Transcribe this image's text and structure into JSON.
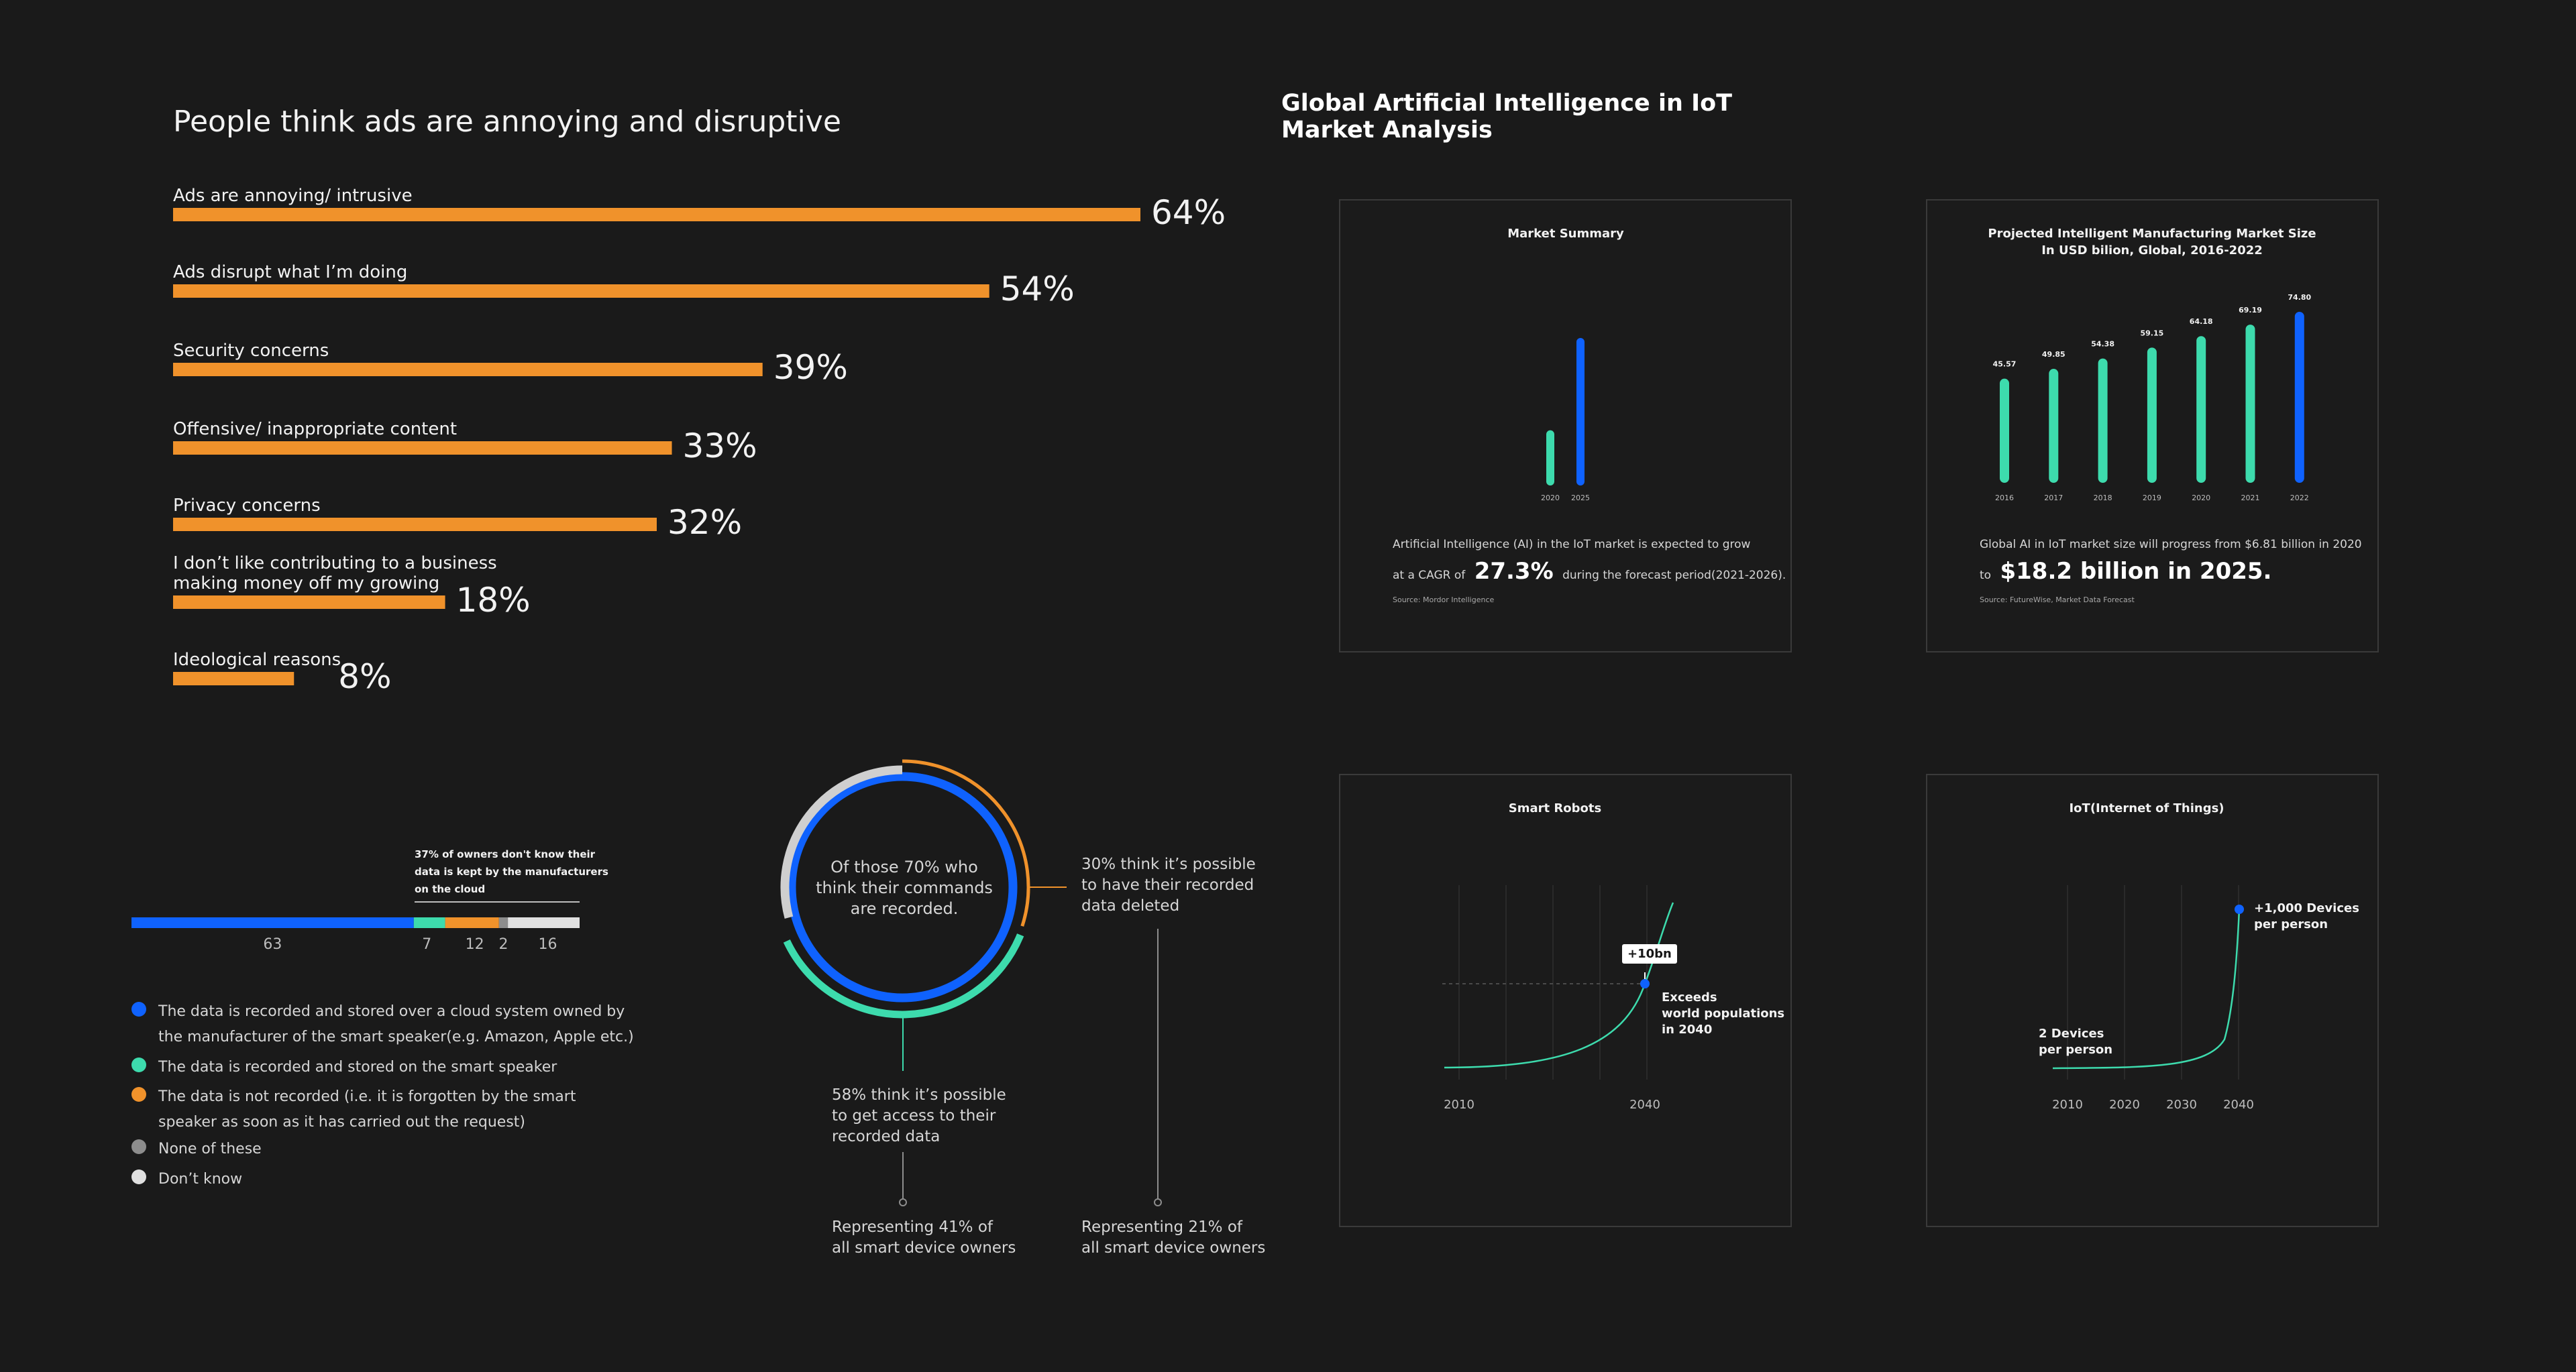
{
  "colors": {
    "background": "#1a1a1a",
    "orange": "#f0922b",
    "blue": "#0f62fe",
    "green": "#3ddbad",
    "light_gray": "#e0e0e0",
    "gray": "#8d8d8d",
    "card_border": "#3a3a3a"
  },
  "ads": {
    "title": "People think ads are annoying and disruptive"
  },
  "iot": {
    "title_line1": "Global Artificial Intelligence in IoT",
    "title_line2": "Market Analysis"
  },
  "market_summary": {
    "desc_line1": "Artificial Intelligence (AI) in the IoT market is expected to grow",
    "desc_prefix": "at a CAGR of",
    "highlight": "27.3%",
    "desc_suffix": "during the forecast period(2021-2026).",
    "source": "Source: Mordor Intelligence"
  },
  "projected": {
    "desc_line1": "Global AI in IoT market size will progress from $6.81 billion in 2020",
    "prefix": "to",
    "highlight": "$18.2 billion in 2025.",
    "source": "Source: FutureWise, Market Data Forecast"
  },
  "smart_robots": {
    "badge": "+10bn",
    "note_line1": "Exceeds",
    "note_line2": "world populations",
    "note_line3": "in 2040"
  },
  "iot_devices": {
    "label_high_line1": "+1,000 Devices",
    "label_high_line2": "per person",
    "label_low_line1": "2 Devices",
    "label_low_line2": "per person"
  },
  "storage": {
    "note_line1": "37% of owners don't know their",
    "note_line2": "data is kept by the manufacturers",
    "note_line3": "on the cloud",
    "legend": [
      {
        "color": "#0f62fe",
        "line1": "The data is recorded and stored over a cloud system owned by",
        "line2": "the manufacturer of the smart speaker(e.g. Amazon, Apple etc.)"
      },
      {
        "color": "#3ddbad",
        "line1": "The data is recorded and stored on the smart speaker",
        "line2": ""
      },
      {
        "color": "#f0922b",
        "line1": "The data is not recorded (i.e. it is forgotten by the smart",
        "line2": "speaker as soon as it has carried out the request)"
      },
      {
        "color": "#8d8d8d",
        "line1": "None of these",
        "line2": ""
      },
      {
        "color": "#e0e0e0",
        "line1": "Don’t know",
        "line2": ""
      }
    ]
  },
  "recorded": {
    "center_line1": "Of those 70% who",
    "center_line2": "think their commands",
    "center_line3": "are recorded.",
    "right_line1": "30% think it’s possible",
    "right_line2": "to have their recorded",
    "right_line3": "data deleted",
    "bottom_line1": "58% think it’s possible",
    "bottom_line2": "to get access to their",
    "bottom_line3": "recorded data",
    "rep_left_line1": "Representing 41% of",
    "rep_left_line2": "all smart device owners",
    "rep_right_line1": "Representing 21% of",
    "rep_right_line2": "all smart device owners"
  },
  "chart_data": [
    {
      "type": "bar",
      "orientation": "horizontal",
      "title": "People think ads are annoying and disruptive",
      "categories": [
        [
          "Ads are annoying/ intrusive"
        ],
        [
          "Ads disrupt what I’m doing"
        ],
        [
          "Security concerns"
        ],
        [
          "Offensive/ inappropriate content"
        ],
        [
          "Privacy concerns"
        ],
        [
          "I don’t like contributing to a business",
          "making money off my growing"
        ],
        [
          "Ideological reasons"
        ]
      ],
      "values": [
        64,
        54,
        39,
        33,
        32,
        18,
        8
      ],
      "value_labels": [
        "64%",
        "54%",
        "39%",
        "33%",
        "32%",
        "18%",
        "8%"
      ],
      "unit": "%"
    },
    {
      "type": "bar",
      "title": "Market Summary",
      "categories": [
        "2020",
        "2025"
      ],
      "values": [
        6.81,
        18.2
      ]
    },
    {
      "type": "bar",
      "title": "Projected Intelligent Manufacturing Market Size",
      "subtitle": "In USD bilion, Global, 2016-2022",
      "categories": [
        "2016",
        "2017",
        "2018",
        "2019",
        "2020",
        "2021",
        "2022"
      ],
      "values": [
        45.57,
        49.85,
        54.38,
        59.15,
        64.18,
        69.19,
        74.8
      ],
      "value_labels": [
        "45.57",
        "49.85",
        "54.38",
        "59.15",
        "64.18",
        "69.19",
        "74.80"
      ]
    },
    {
      "type": "line",
      "title": "Smart Robots",
      "x_ticks": [
        "2010",
        "2040"
      ],
      "highlight": {
        "x": 2040,
        "label": "+10bn"
      }
    },
    {
      "type": "line",
      "title": "IoT(Internet of Things)",
      "x_ticks": [
        "2010",
        "2020",
        "2030",
        "2040"
      ],
      "highlight": {
        "x": 2040,
        "label": "+1,000 Devices per person"
      }
    },
    {
      "type": "bar",
      "orientation": "stacked-horizontal",
      "segments": [
        {
          "value": 63,
          "label": "63",
          "color": "#0f62fe"
        },
        {
          "value": 7,
          "label": "7",
          "color": "#3ddbad"
        },
        {
          "value": 12,
          "label": "12",
          "color": "#f0922b"
        },
        {
          "value": 2,
          "label": "2",
          "color": "#8d8d8d"
        },
        {
          "value": 16,
          "label": "16",
          "color": "#e0e0e0"
        }
      ]
    },
    {
      "type": "pie",
      "rings": [
        {
          "name": "blue",
          "value": 100,
          "color": "#0f62fe"
        },
        {
          "name": "gray",
          "value": 30,
          "color": "#cfcfcf"
        },
        {
          "name": "orange",
          "value": 30,
          "color": "#f0922b"
        },
        {
          "name": "green",
          "value": 58,
          "color": "#3ddbad"
        }
      ]
    }
  ]
}
